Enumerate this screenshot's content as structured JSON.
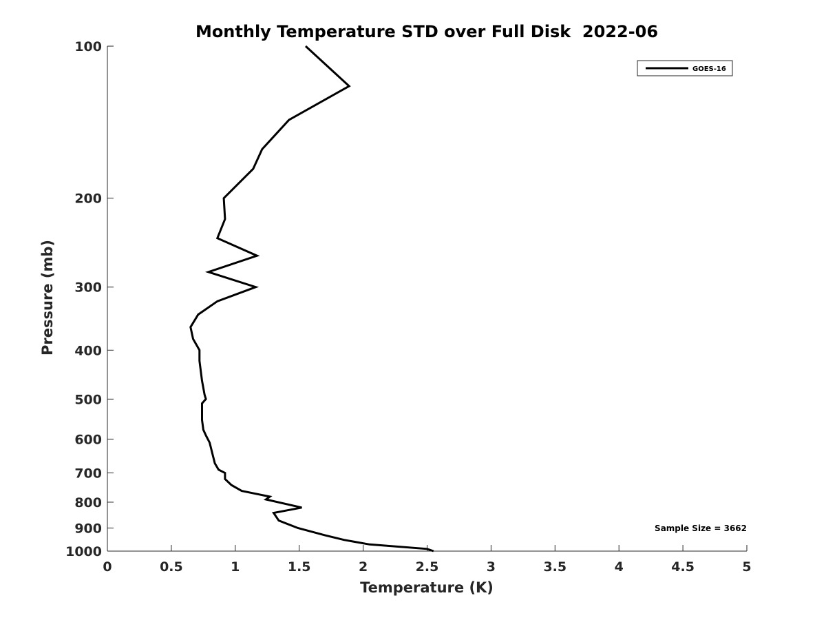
{
  "chart_data": {
    "type": "line",
    "title": "Monthly Temperature STD over Full Disk  2022-06",
    "xlabel": "Temperature (K)",
    "ylabel": "Pressure (mb)",
    "xlim": [
      0,
      5
    ],
    "ylim": [
      100,
      1000
    ],
    "y_scale": "log",
    "y_reversed": true,
    "x_ticks": [
      0,
      0.5,
      1,
      1.5,
      2,
      2.5,
      3,
      3.5,
      4,
      4.5,
      5
    ],
    "x_tick_labels": [
      "0",
      "0.5",
      "1",
      "1.5",
      "2",
      "2.5",
      "3",
      "3.5",
      "4",
      "4.5",
      "5"
    ],
    "y_ticks": [
      100,
      200,
      300,
      400,
      500,
      600,
      700,
      800,
      900,
      1000
    ],
    "y_tick_labels": [
      "100",
      "200",
      "300",
      "400",
      "500",
      "600",
      "700",
      "800",
      "900",
      "1000"
    ],
    "grid": false,
    "legend_position": "top-right",
    "annotation": "Sample Size = 3662",
    "series": [
      {
        "name": "GOES-16",
        "color": "#000000",
        "points": [
          [
            1.55,
            100
          ],
          [
            1.89,
            120
          ],
          [
            1.42,
            140
          ],
          [
            1.21,
            160
          ],
          [
            1.14,
            175
          ],
          [
            0.91,
            200
          ],
          [
            0.92,
            220
          ],
          [
            0.86,
            240
          ],
          [
            1.17,
            260
          ],
          [
            0.79,
            280
          ],
          [
            1.16,
            300
          ],
          [
            0.86,
            320
          ],
          [
            0.71,
            340
          ],
          [
            0.65,
            360
          ],
          [
            0.67,
            380
          ],
          [
            0.72,
            400
          ],
          [
            0.72,
            420
          ],
          [
            0.74,
            460
          ],
          [
            0.76,
            490
          ],
          [
            0.77,
            500
          ],
          [
            0.74,
            510
          ],
          [
            0.74,
            550
          ],
          [
            0.75,
            575
          ],
          [
            0.77,
            590
          ],
          [
            0.8,
            610
          ],
          [
            0.82,
            640
          ],
          [
            0.84,
            670
          ],
          [
            0.87,
            690
          ],
          [
            0.92,
            700
          ],
          [
            0.92,
            720
          ],
          [
            0.97,
            740
          ],
          [
            1.05,
            760
          ],
          [
            1.27,
            780
          ],
          [
            1.24,
            790
          ],
          [
            1.52,
            820
          ],
          [
            1.3,
            840
          ],
          [
            1.34,
            870
          ],
          [
            1.49,
            900
          ],
          [
            1.7,
            930
          ],
          [
            1.85,
            950
          ],
          [
            2.05,
            970
          ],
          [
            2.5,
            990
          ],
          [
            2.55,
            1000
          ]
        ]
      }
    ]
  }
}
